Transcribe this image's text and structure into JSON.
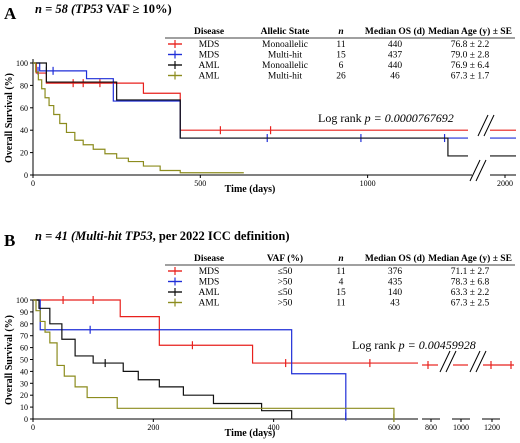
{
  "panels": [
    {
      "letter": "A",
      "title_prefix": "n = 58 (",
      "title_gene": "TP53",
      "title_suffix": " VAF ≥ 10%)",
      "ylabel": "Overall Survival (%)",
      "xlabel": "Time (days)",
      "log_rank_text": "Log rank ",
      "log_rank_p": "p = 0.0000767692",
      "table_headers": [
        "Disease",
        "Allelic State",
        "n",
        "Median OS (d)",
        "Median Age (y) ± SE"
      ],
      "table_rows": [
        [
          "MDS",
          "Monoallelic",
          "11",
          "440",
          "76.8 ± 2.2"
        ],
        [
          "MDS",
          "Multi-hit",
          "15",
          "437",
          "79.0 ± 2.8"
        ],
        [
          "AML",
          "Monoallelic",
          "6",
          "440",
          "76.9 ± 6.4"
        ],
        [
          "AML",
          "Multi-hit",
          "26",
          "46",
          "67.3 ± 1.7"
        ]
      ]
    },
    {
      "letter": "B",
      "title_prefix": "n = 41 (Multi-hit ",
      "title_gene": "TP53",
      "title_suffix": ", per 2022 ICC definition)",
      "ylabel": "Overall Survival (%)",
      "xlabel": "Time (days)",
      "log_rank_text": "Log rank ",
      "log_rank_p": "p = 0.00459928",
      "table_headers": [
        "Disease",
        "VAF (%)",
        "n",
        "Median OS (d)",
        "Median Age (y) ± SE"
      ],
      "table_rows": [
        [
          "MDS",
          "≤50",
          "11",
          "376",
          "71.1 ± 2.7"
        ],
        [
          "MDS",
          ">50",
          "4",
          "435",
          "78.3 ± 6.8"
        ],
        [
          "AML",
          "≤50",
          "15",
          "140",
          "63.3 ± 2.2"
        ],
        [
          "AML",
          ">50",
          "11",
          "43",
          "67.3 ± 2.5"
        ]
      ]
    }
  ],
  "chart_data": [
    {
      "type": "line",
      "panel": "A",
      "ylim": [
        0,
        100
      ],
      "yticks": [
        0,
        20,
        40,
        60,
        80,
        100
      ],
      "xticks": [
        0,
        500,
        1000
      ],
      "xticks_broken": [
        2000
      ],
      "xlim": [
        0,
        1300
      ],
      "series": [
        {
          "color": "#e8211d",
          "steps": [
            [
              0,
              100
            ],
            [
              10,
              91
            ],
            [
              40,
              82
            ],
            [
              330,
              73
            ],
            [
              440,
              40
            ],
            [
              1300,
              40
            ]
          ],
          "censors": [
            [
              120,
              82
            ],
            [
              150,
              82
            ],
            [
              200,
              82
            ],
            [
              560,
              40
            ],
            [
              710,
              40
            ]
          ],
          "tail_y": 40
        },
        {
          "color": "#1f2ed8",
          "steps": [
            [
              0,
              100
            ],
            [
              20,
              93
            ],
            [
              90,
              93
            ],
            [
              160,
              86
            ],
            [
              240,
              66
            ],
            [
              440,
              33
            ],
            [
              1300,
              33
            ]
          ],
          "censors": [
            [
              15,
              93
            ],
            [
              40,
              93
            ],
            [
              60,
              93
            ],
            [
              700,
              33
            ],
            [
              980,
              33
            ],
            [
              1230,
              33
            ]
          ],
          "tail_y": 33
        },
        {
          "color": "#111111",
          "steps": [
            [
              0,
              100
            ],
            [
              40,
              83
            ],
            [
              250,
              67
            ],
            [
              440,
              33
            ],
            [
              1240,
              33
            ],
            [
              1240,
              17
            ],
            [
              1300,
              17
            ]
          ],
          "censors": [],
          "tail_y": 17
        },
        {
          "color": "#8c8c1e",
          "steps": [
            [
              0,
              100
            ],
            [
              8,
              92
            ],
            [
              16,
              85
            ],
            [
              26,
              77
            ],
            [
              36,
              69
            ],
            [
              48,
              62
            ],
            [
              62,
              54
            ],
            [
              80,
              46
            ],
            [
              100,
              38
            ],
            [
              125,
              31
            ],
            [
              150,
              27
            ],
            [
              180,
              23
            ],
            [
              215,
              19
            ],
            [
              250,
              15
            ],
            [
              285,
              12
            ],
            [
              330,
              8
            ],
            [
              380,
              4
            ],
            [
              440,
              2
            ],
            [
              630,
              2
            ]
          ],
          "censors": [],
          "tail_y": null
        }
      ]
    },
    {
      "type": "line",
      "panel": "B",
      "ylim": [
        0,
        100
      ],
      "yticks": [
        0,
        10,
        20,
        30,
        40,
        50,
        60,
        70,
        80,
        90,
        100
      ],
      "xticks": [
        0,
        200,
        400,
        600
      ],
      "xticks_broken": [
        800,
        1000,
        1200
      ],
      "xlim": [
        0,
        640
      ],
      "series": [
        {
          "color": "#e8211d",
          "steps": [
            [
              0,
              100
            ],
            [
              145,
              86
            ],
            [
              210,
              62
            ],
            [
              365,
              47
            ],
            [
              640,
              47
            ]
          ],
          "censors": [
            [
              50,
              100
            ],
            [
              100,
              100
            ],
            [
              265,
              62
            ],
            [
              420,
              47
            ],
            [
              560,
              47
            ]
          ],
          "tail_y": 47
        },
        {
          "color": "#1f2ed8",
          "steps": [
            [
              0,
              100
            ],
            [
              12,
              75
            ],
            [
              430,
              38
            ],
            [
              520,
              0
            ]
          ],
          "censors": [
            [
              95,
              75
            ],
            [
              520,
              2
            ]
          ],
          "tail_y": null
        },
        {
          "color": "#111111",
          "steps": [
            [
              0,
              100
            ],
            [
              10,
              93
            ],
            [
              28,
              80
            ],
            [
              48,
              67
            ],
            [
              70,
              53
            ],
            [
              100,
              47
            ],
            [
              150,
              40
            ],
            [
              175,
              33
            ],
            [
              210,
              27
            ],
            [
              250,
              20
            ],
            [
              300,
              13
            ],
            [
              380,
              7
            ],
            [
              430,
              0
            ]
          ],
          "censors": [
            [
              120,
              47
            ]
          ],
          "tail_y": null
        },
        {
          "color": "#8c8c1e",
          "steps": [
            [
              0,
              100
            ],
            [
              5,
              91
            ],
            [
              12,
              82
            ],
            [
              20,
              73
            ],
            [
              28,
              64
            ],
            [
              40,
              45
            ],
            [
              52,
              36
            ],
            [
              70,
              27
            ],
            [
              90,
              18
            ],
            [
              140,
              9
            ],
            [
              600,
              0
            ]
          ],
          "censors": [
            [
              600,
              1
            ]
          ],
          "tail_y": null
        }
      ]
    }
  ]
}
